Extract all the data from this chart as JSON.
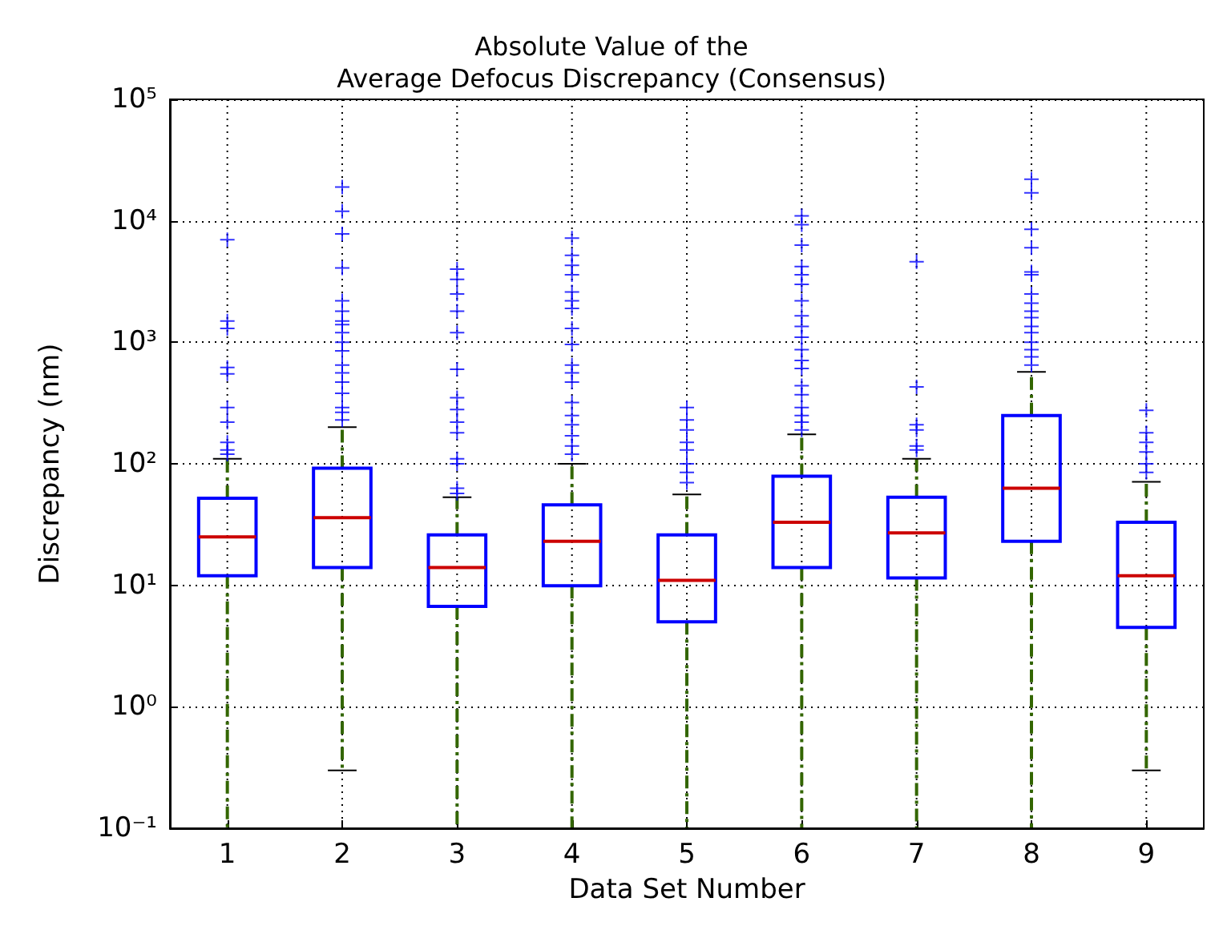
{
  "chart_data": {
    "type": "box",
    "title": "Absolute Value of the\nAverage Defocus Discrepancy (Consensus)",
    "xlabel": "Data Set Number",
    "ylabel": "Discrepancy (nm)",
    "categories": [
      "1",
      "2",
      "3",
      "4",
      "5",
      "6",
      "7",
      "8",
      "9"
    ],
    "log": "y",
    "ylim": [
      0.1,
      100000
    ],
    "yticks": [
      {
        "value": 0.1,
        "label": "10⁻¹"
      },
      {
        "value": 1,
        "label": "10⁰"
      },
      {
        "value": 10,
        "label": "10¹"
      },
      {
        "value": 100,
        "label": "10²"
      },
      {
        "value": 1000,
        "label": "10³"
      },
      {
        "value": 10000,
        "label": "10⁴"
      },
      {
        "value": 100000,
        "label": "10⁵"
      }
    ],
    "grid": true,
    "marker": "cross",
    "series": [
      {
        "color": "#0000ff",
        "boxes": [
          {
            "low": 0.1,
            "q1": 12,
            "median": 25,
            "q3": 52,
            "high": 110,
            "outliers": [
              7000,
              1500,
              1300,
              620,
              550,
              290,
              220,
              150,
              130,
              120
            ]
          },
          {
            "low": 0.3,
            "q1": 14,
            "median": 36,
            "q3": 92,
            "high": 200,
            "outliers": [
              19000,
              12000,
              7800,
              4100,
              2200,
              1800,
              1500,
              1400,
              1200,
              1000,
              850,
              650,
              560,
              470,
              380,
              290,
              265,
              230
            ]
          },
          {
            "low": 0.1,
            "q1": 6.7,
            "median": 14,
            "q3": 26,
            "high": 53,
            "outliers": [
              4000,
              3300,
              2500,
              1800,
              1200,
              600,
              350,
              280,
              220,
              180,
              110,
              100,
              63,
              57
            ]
          },
          {
            "low": 0.1,
            "q1": 9.9,
            "median": 23,
            "q3": 46,
            "high": 100,
            "outliers": [
              7200,
              5200,
              4300,
              3600,
              2600,
              2200,
              1900,
              1300,
              960,
              650,
              560,
              470,
              320,
              250,
              210,
              170,
              140,
              120
            ]
          },
          {
            "low": 0.1,
            "q1": 5,
            "median": 11,
            "q3": 26,
            "high": 56,
            "outliers": [
              290,
              230,
              190,
              150,
              130,
              100,
              85,
              70
            ]
          },
          {
            "low": 0.1,
            "q1": 14,
            "median": 33,
            "q3": 79,
            "high": 175,
            "outliers": [
              11000,
              9300,
              6300,
              4200,
              3600,
              3000,
              2200,
              1650,
              1350,
              1100,
              870,
              710,
              610,
              440,
              370,
              290,
              250,
              220,
              190
            ]
          },
          {
            "low": 0.1,
            "q1": 11.5,
            "median": 27,
            "q3": 53,
            "high": 110,
            "outliers": [
              4600,
              430,
              210,
              190,
              140,
              130
            ]
          },
          {
            "low": 0.1,
            "q1": 23,
            "median": 63,
            "q3": 250,
            "high": 570,
            "outliers": [
              22000,
              17000,
              8500,
              6000,
              3800,
              3600,
              2500,
              2100,
              1800,
              1600,
              1350,
              1200,
              1000,
              870,
              760,
              650
            ]
          },
          {
            "low": 0.3,
            "q1": 4.5,
            "median": 12,
            "q3": 33,
            "high": 71,
            "outliers": [
              275,
              180,
              150,
              125,
              100,
              85
            ]
          }
        ]
      }
    ]
  }
}
